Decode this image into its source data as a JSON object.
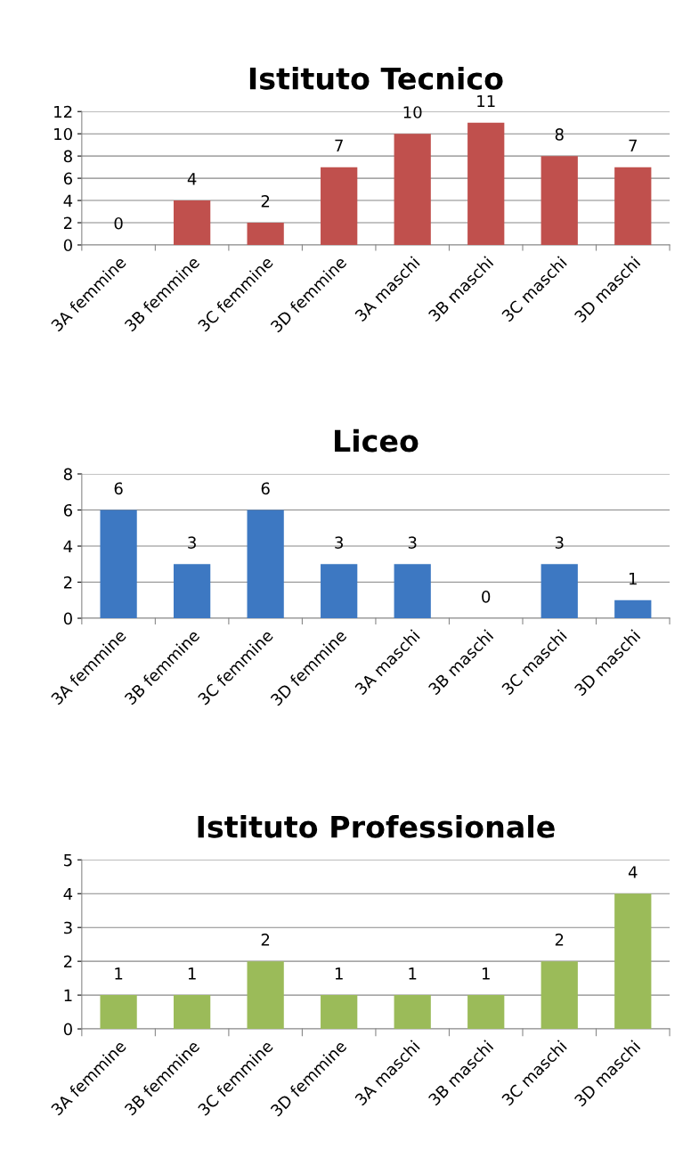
{
  "chart_data": [
    {
      "type": "bar",
      "title": "Istituto Tecnico",
      "categories": [
        "3A femmine",
        "3B femmine",
        "3C femmine",
        "3D femmine",
        "3A maschi",
        "3B maschi",
        "3C maschi",
        "3D maschi"
      ],
      "values": [
        0,
        4,
        2,
        7,
        10,
        11,
        8,
        7
      ],
      "color": "#c0504d",
      "ylim": [
        0,
        12
      ],
      "yticks": [
        0,
        2,
        4,
        6,
        8,
        10,
        12
      ],
      "grid": "y",
      "data_labels": true
    },
    {
      "type": "bar",
      "title": "Liceo",
      "categories": [
        "3A femmine",
        "3B femmine",
        "3C femmine",
        "3D femmine",
        "3A maschi",
        "3B maschi",
        "3C maschi",
        "3D maschi"
      ],
      "values": [
        6,
        3,
        6,
        3,
        3,
        0,
        3,
        1
      ],
      "color": "#3d78c2",
      "ylim": [
        0,
        8
      ],
      "yticks": [
        0,
        2,
        4,
        6,
        8
      ],
      "grid": "y",
      "data_labels": true
    },
    {
      "type": "bar",
      "title": "Istituto Professionale",
      "categories": [
        "3A femmine",
        "3B femmine",
        "3C femmine",
        "3D femmine",
        "3A maschi",
        "3B maschi",
        "3C maschi",
        "3D maschi"
      ],
      "values": [
        1,
        1,
        2,
        1,
        1,
        1,
        2,
        4
      ],
      "color": "#9bbb59",
      "ylim": [
        0,
        5
      ],
      "yticks": [
        0,
        1,
        2,
        3,
        4,
        5
      ],
      "grid": "y",
      "data_labels": true
    }
  ]
}
